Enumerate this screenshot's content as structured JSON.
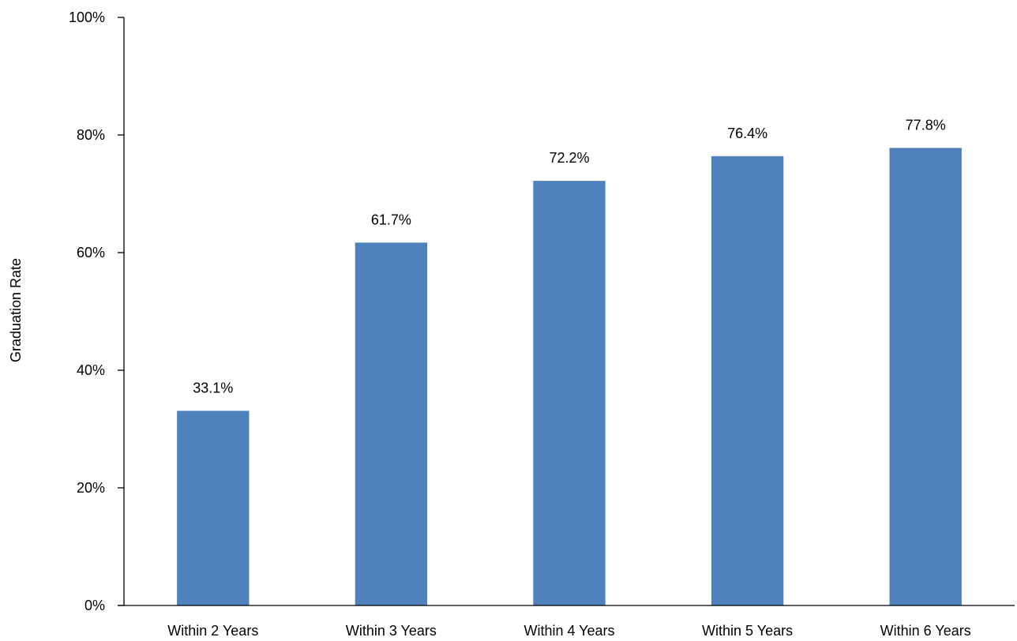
{
  "chart_data": {
    "type": "bar",
    "title": "",
    "xlabel": "",
    "ylabel": "Graduation Rate",
    "categories": [
      "Within 2 Years",
      "Within 3 Years",
      "Within 4 Years",
      "Within 5 Years",
      "Within 6 Years"
    ],
    "values": [
      33.1,
      61.7,
      72.2,
      76.4,
      77.8
    ],
    "data_labels": [
      "33.1%",
      "61.7%",
      "72.2%",
      "76.4%",
      "77.8%"
    ],
    "ylim": [
      0,
      100
    ],
    "yticks": [
      0,
      20,
      40,
      60,
      80,
      100
    ],
    "ytick_labels": [
      "0%",
      "20%",
      "40%",
      "60%",
      "80%",
      "100%"
    ],
    "grid": false,
    "legend": "none",
    "bar_color": "#4F81BD"
  }
}
